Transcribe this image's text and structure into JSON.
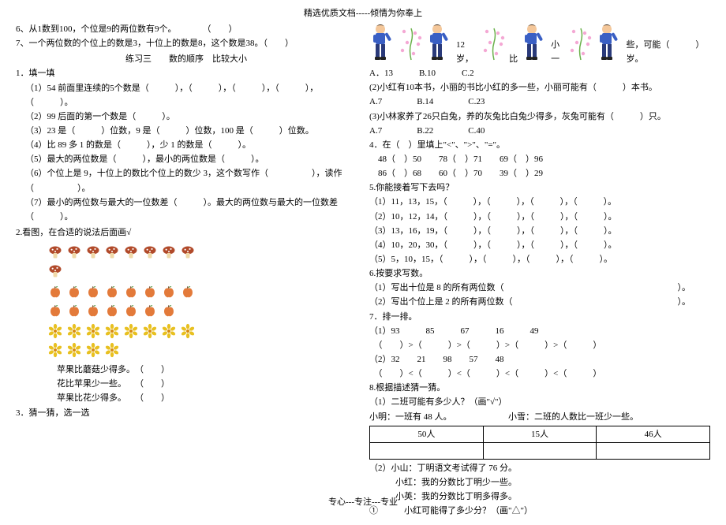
{
  "header": "精选优质文档-----倾情为你奉上",
  "footer": "专心---专注---专业",
  "left": {
    "q6": "6、从1数到100，个位是9的两位数有9个。　　　　（　　）",
    "q7": "7、一个两位数的个位上的数是3，十位上的数是8，这个数是38。（　　）",
    "practice3_title": "练习三　　数的顺序　比较大小",
    "s1_title": "1．填一填",
    "s1_1": "（1）54 前面里连续的5个数是（　　　），（　　　），（　　　），（　　　），（　　　）。",
    "s1_2": "（2）99 后面的第一个数是（　　　）。",
    "s1_3": "（3）23 是（　　　）位数，9 是（　　　）位数，100 是（　　　）位数。",
    "s1_4": "（4）比 89 多 1 的数是（　　　），少 1 的数是（　　　）。",
    "s1_5": "（5）最大的两位数是（　　　），最小的两位数是（　　　）。",
    "s1_6": "（6）个位上是 9，十位上的数比个位上的数少 3，这个数写作（　　　　　），读作（　　　　　）。",
    "s1_7": "（7）最小的两位数与最大的一位数差（　　　）。最大的两位数与最大的一位数差（　　　）。",
    "s2_title": "2.看图，在合适的说法后面画√",
    "s2_a": "苹果比蘑菇少得多。　（　　）",
    "s2_b": "花比苹果少一些。　　（　　）",
    "s2_c": "苹果比花少得多。　　（　　）",
    "s3_title": "3．猜一猜，选一选"
  },
  "right": {
    "kids_line1_prefix": "",
    "kids_line1_a": "12岁，",
    "kids_line1_b": "比",
    "kids_line1_c": "小一",
    "kids_line1_d": "些，可能（　　　）岁。",
    "opt1": "A．13　　　B.10　　　C.2",
    "r2": "(2)小红有10本书，小丽的书比小红的多一些，小丽可能有（　　　）本书。",
    "opt2": "A.7　　　　B.14　　　　C.23",
    "r3": "(3)小林家养了26只白兔，养的灰兔比白兔少得多，灰兔可能有（　　　）只。",
    "opt3": "A.7　　　　B.22　　　　C.40",
    "s4_title": "4．在（　）里填上\"<\"、\">\"、\"=\"。",
    "s4_l1": "　48（　）50　　78（　）71　　69（　）96",
    "s4_l2": "　86（　）68　　60（　）70　　39（　）29",
    "s5_title": "5.你能接着写下去吗？",
    "s5_1": "（1）11，13，15，（　　　），（　　　），（　　　），（　　　）。",
    "s5_2": "（2）10，12，14，（　　　），（　　　），（　　　），（　　　）。",
    "s5_3": "（3）13，16，19，（　　　），（　　　），（　　　），（　　　）。",
    "s5_4": "（4）10，20，30，（　　　），（　　　），（　　　），（　　　）。",
    "s5_5": "（5）5，10，15，（　　　），（　　　），（　　　），（　　　）。",
    "s6_title": "6.按要求写数。",
    "s6_1": "（1）写出十位是 8 的所有两位数（　　　　　　　　　　　　　　　　　　　　）。",
    "s6_2": "（2）写出个位上是 2 的所有两位数（　　　　　　　　　　　　　　　　　　　）。",
    "s7_title": "7．排一排。",
    "s7_1": "（1）93　　　85　　　67　　　16　　　49",
    "s7_1b": "　（　　）>（　　　）>（　　　）>（　　　）>（　　　）",
    "s7_2": "（2）32　　21　　98　　57　　48",
    "s7_2b": "　（　　）<（　　　）<（　　　）<（　　　）<（　　　）",
    "s8_title": "8.根据描述猜一猜。",
    "s8_1": "（1）二班可能有多少人？（画\"√\"）",
    "s8_1a": "小明：一班有 48 人。　　　　　　　小雪：二班的人数比一班少一些。",
    "tbl": {
      "c1": "50人",
      "c2": "15人",
      "c3": "46人"
    },
    "s8_2": "（2）小山：丁明语文考试得了 76 分。",
    "s8_2a": "　　　小红：我的分数比丁明少一些。",
    "s8_2b": "　　　小英：我的分数比丁明多得多。",
    "s8_2c": "①　　　小红可能得了多少分？（画\"△\"）"
  },
  "icons": {
    "mushroom_count": 9,
    "apple_count": 15,
    "flower_count": 12,
    "mushroom_color": "#b14a2a",
    "mushroom_stem": "#f0d9a8",
    "apple_color": "#e37a3a",
    "apple_leaf": "#3a8a2a",
    "flower_color": "#e8c020",
    "flower_center": "#d88a10",
    "kid_shirt": "#3a5fc4",
    "kid_pants": "#2a3a7a",
    "kid_skin": "#f4c79a",
    "deco_pink": "#f4a8d4",
    "deco_green": "#6ab04a"
  }
}
